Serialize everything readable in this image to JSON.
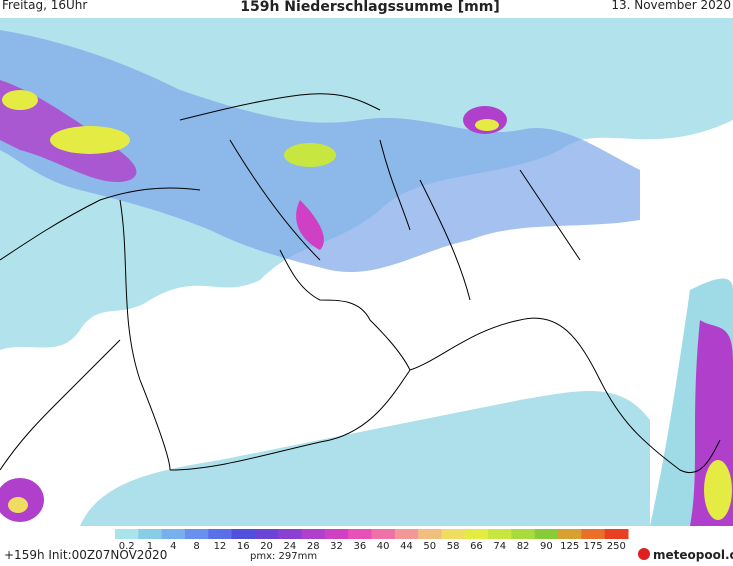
{
  "header": {
    "left": "Freitag, 16Uhr",
    "title": "159h Niederschlagssumme [mm]",
    "right": "13. November 2020"
  },
  "legend": {
    "levels": [
      "0.2",
      "1",
      "4",
      "8",
      "12",
      "16",
      "20",
      "24",
      "28",
      "32",
      "36",
      "40",
      "44",
      "50",
      "58",
      "66",
      "74",
      "82",
      "90",
      "125",
      "175",
      "250"
    ],
    "colors": [
      "#a8e4ea",
      "#88cce6",
      "#78b0ec",
      "#6890ec",
      "#5a70e8",
      "#5050dc",
      "#6a44d4",
      "#8a40d0",
      "#b040cc",
      "#d040c4",
      "#e850b8",
      "#f070a8",
      "#f29898",
      "#f2be80",
      "#f0dc60",
      "#e4ec44",
      "#c8e640",
      "#a8dc3c",
      "#86cc38",
      "#d8a030",
      "#e87028",
      "#e84020"
    ]
  },
  "footer": {
    "run": "+159h Init:00Z07NOV2020",
    "max": "pmx: 297mm",
    "logo": "meteopool.org"
  }
}
